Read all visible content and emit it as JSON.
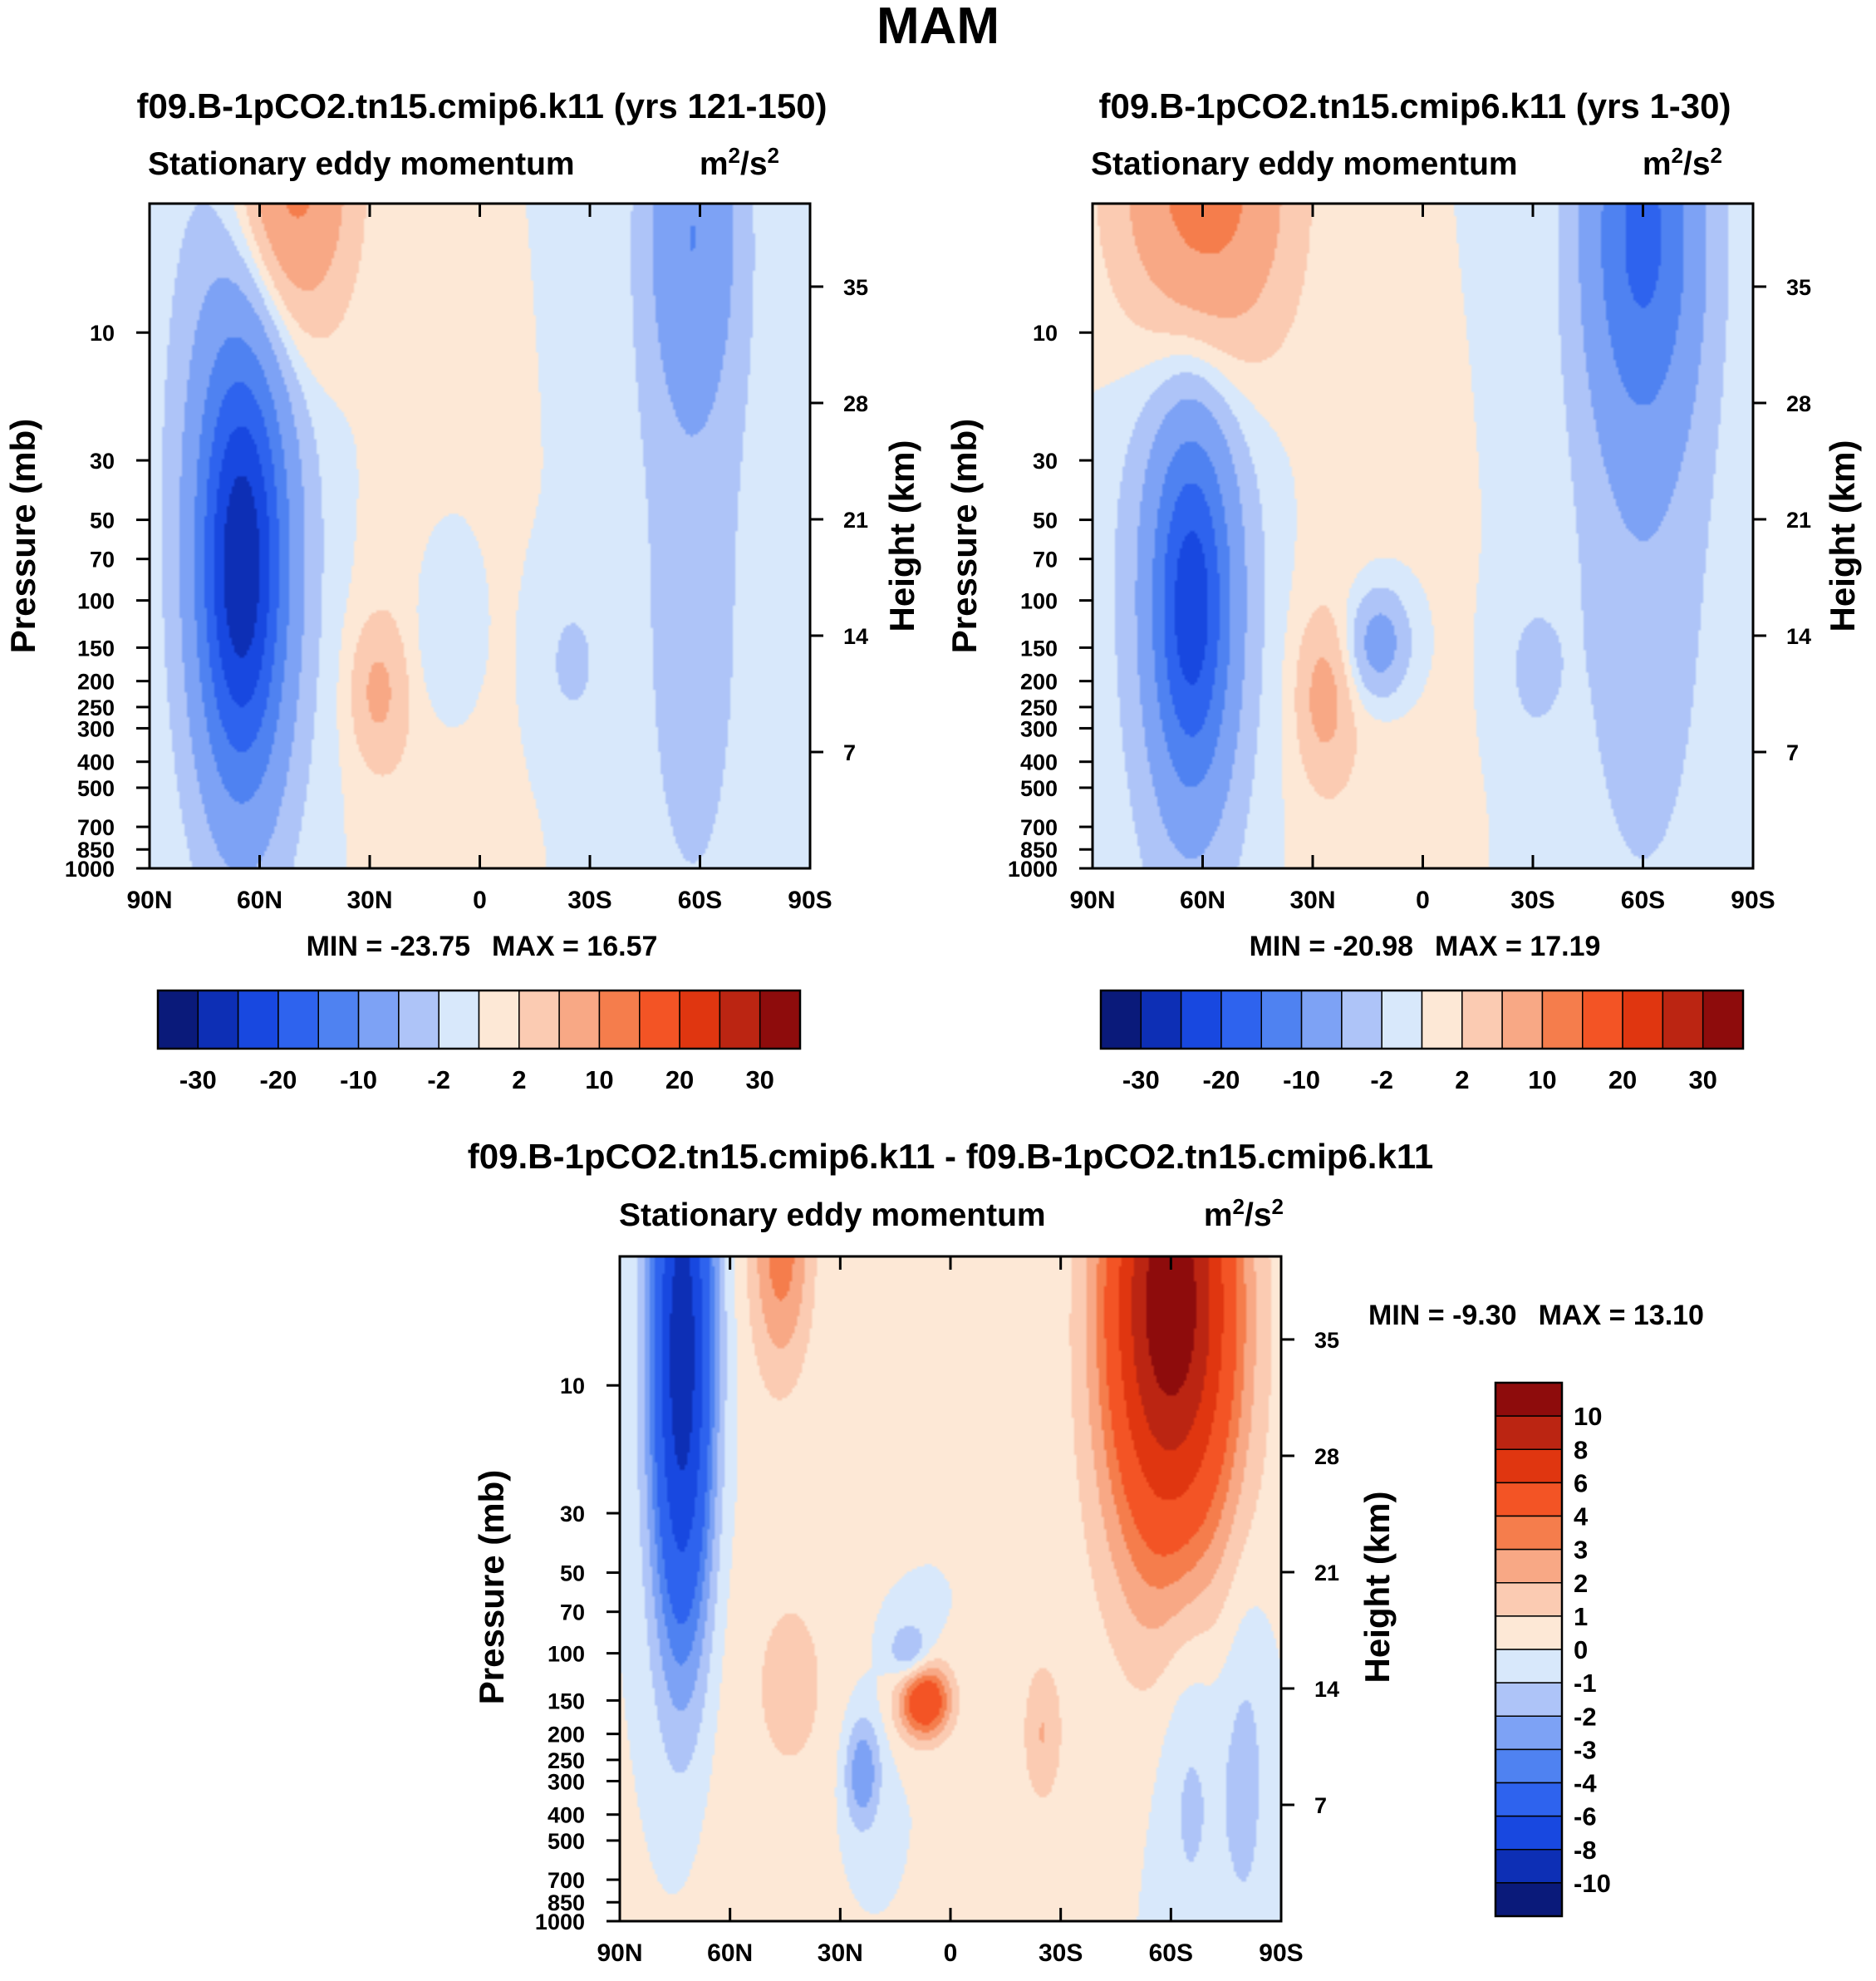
{
  "page_title": "MAM",
  "chart_data": [
    {
      "type": "contour",
      "title": "f09.B-1pCO2.tn15.cmip6.k11 (yrs 121-150)",
      "subtitle": "Stationary eddy momentum",
      "units": "m",
      "units_sup1": "2",
      "units_mid": "/s",
      "units_sup2": "2",
      "ylabel": "Pressure (mb)",
      "y2label": "Height (km)",
      "xticks": [
        "90N",
        "60N",
        "30N",
        "0",
        "30S",
        "60S",
        "90S"
      ],
      "yticks": [
        "10",
        "30",
        "50",
        "70",
        "100",
        "150",
        "200",
        "250",
        "300",
        "400",
        "500",
        "700",
        "850",
        "1000"
      ],
      "y2ticks": [
        "35",
        "28",
        "21",
        "14",
        "7"
      ],
      "min_label": "MIN = -23.75",
      "max_label": "MAX =  16.57",
      "min": -23.75,
      "max": 16.57,
      "levels": [
        -30,
        -25,
        -20,
        -15,
        -10,
        -5,
        -2,
        0,
        2,
        5,
        10,
        15,
        20,
        25,
        30
      ],
      "colorbar_labels": [
        "-30",
        "-20",
        "-10",
        "-2",
        "2",
        "10",
        "20",
        "30"
      ],
      "features": [
        {
          "lat": 65,
          "p": 80,
          "amp": -23,
          "slat": 8,
          "slogp": 0.55
        },
        {
          "lat": 64,
          "p": 30,
          "amp": -7,
          "slat": 13,
          "slogp": 1.0
        },
        {
          "lat": 52,
          "p": 2.5,
          "amp": 14,
          "slat": 11,
          "slogp": 0.45
        },
        {
          "lat": -58,
          "p": 4,
          "amp": -9,
          "slat": 9,
          "slogp": 0.5
        },
        {
          "lat": -58,
          "p": 120,
          "amp": -3,
          "slat": 12,
          "slogp": 1.0
        },
        {
          "lat": 28,
          "p": 220,
          "amp": 5,
          "slat": 5,
          "slogp": 0.18
        },
        {
          "lat": 10,
          "p": 130,
          "amp": -3,
          "slat": 6,
          "slogp": 0.25
        },
        {
          "lat": -25,
          "p": 170,
          "amp": -2.5,
          "slat": 6,
          "slogp": 0.2
        },
        {
          "lat": 18,
          "p": 200,
          "amp": 1.5,
          "slat": 12,
          "slogp": 0.6
        }
      ]
    },
    {
      "type": "contour",
      "title": "f09.B-1pCO2.tn15.cmip6.k11 (yrs 1-30)",
      "subtitle": "Stationary eddy momentum",
      "units": "m",
      "units_sup1": "2",
      "units_mid": "/s",
      "units_sup2": "2",
      "ylabel": "Pressure (mb)",
      "y2label": "Height (km)",
      "xticks": [
        "90N",
        "60N",
        "30N",
        "0",
        "30S",
        "60S",
        "90S"
      ],
      "yticks": [
        "10",
        "30",
        "50",
        "70",
        "100",
        "150",
        "200",
        "250",
        "300",
        "400",
        "500",
        "700",
        "850",
        "1000"
      ],
      "y2ticks": [
        "35",
        "28",
        "21",
        "14",
        "7"
      ],
      "min_label": "MIN = -20.98",
      "max_label": "MAX =  17.19",
      "min": -20.98,
      "max": 17.19,
      "levels": [
        -30,
        -25,
        -20,
        -15,
        -10,
        -5,
        -2,
        0,
        2,
        5,
        10,
        15,
        20,
        25,
        30
      ],
      "colorbar_labels": [
        "-30",
        "-20",
        "-10",
        "-2",
        "2",
        "10",
        "20",
        "30"
      ],
      "features": [
        {
          "lat": 63,
          "p": 110,
          "amp": -17,
          "slat": 7,
          "slogp": 0.45
        },
        {
          "lat": 63,
          "p": 60,
          "amp": -7,
          "slat": 13,
          "slogp": 0.9
        },
        {
          "lat": 60,
          "p": 3,
          "amp": 15,
          "slat": 15,
          "slogp": 0.5
        },
        {
          "lat": -60,
          "p": 4,
          "amp": -15,
          "slat": 11,
          "slogp": 0.55
        },
        {
          "lat": -60,
          "p": 80,
          "amp": -3.5,
          "slat": 14,
          "slogp": 1.0
        },
        {
          "lat": 27,
          "p": 230,
          "amp": 5.5,
          "slat": 5,
          "slogp": 0.2
        },
        {
          "lat": 12,
          "p": 145,
          "amp": -8,
          "slat": 6,
          "slogp": 0.15
        },
        {
          "lat": -30,
          "p": 180,
          "amp": -2.5,
          "slat": 6,
          "slogp": 0.2
        },
        {
          "lat": 20,
          "p": 250,
          "amp": 1.5,
          "slat": 14,
          "slogp": 0.6
        }
      ]
    },
    {
      "type": "contour",
      "title": "f09.B-1pCO2.tn15.cmip6.k11 - f09.B-1pCO2.tn15.cmip6.k11",
      "subtitle": "Stationary eddy momentum",
      "units": "m",
      "units_sup1": "2",
      "units_mid": "/s",
      "units_sup2": "2",
      "ylabel": "Pressure (mb)",
      "y2label": "Height (km)",
      "xticks": [
        "90N",
        "60N",
        "30N",
        "0",
        "30S",
        "60S",
        "90S"
      ],
      "yticks": [
        "10",
        "30",
        "50",
        "70",
        "100",
        "150",
        "200",
        "250",
        "300",
        "400",
        "500",
        "700",
        "850",
        "1000"
      ],
      "y2ticks": [
        "35",
        "28",
        "21",
        "14",
        "7"
      ],
      "min_label": "MIN =  -9.30",
      "max_label": "MAX =  13.10",
      "min": -9.3,
      "max": 13.1,
      "levels": [
        -10,
        -8,
        -6,
        -4,
        -3,
        -2,
        -1,
        0,
        1,
        2,
        3,
        4,
        6,
        8,
        10
      ],
      "colorbar_labels": [
        "10",
        "8",
        "6",
        "4",
        "3",
        "2",
        "1",
        "0",
        "-1",
        "-2",
        "-3",
        "-4",
        "-6",
        "-8",
        "-10"
      ],
      "features": [
        {
          "lat": 73,
          "p": 8,
          "amp": -9.5,
          "slat": 6,
          "slogp": 0.8
        },
        {
          "lat": 46,
          "p": 3,
          "amp": 3.5,
          "slat": 6,
          "slogp": 0.35
        },
        {
          "lat": 42,
          "p": 130,
          "amp": 1.2,
          "slat": 9,
          "slogp": 0.35
        },
        {
          "lat": -60,
          "p": 4,
          "amp": 10,
          "slat": 12,
          "slogp": 0.55
        },
        {
          "lat": -60,
          "p": 20,
          "amp": 3,
          "slat": 14,
          "slogp": 0.6
        },
        {
          "lat": 7,
          "p": 150,
          "amp": 6,
          "slat": 5,
          "slogp": 0.1
        },
        {
          "lat": 11,
          "p": 100,
          "amp": -2.5,
          "slat": 4,
          "slogp": 0.08
        },
        {
          "lat": 24,
          "p": 280,
          "amp": -3,
          "slat": 3.5,
          "slogp": 0.15
        },
        {
          "lat": -25,
          "p": 200,
          "amp": 2,
          "slat": 4,
          "slogp": 0.2
        },
        {
          "lat": -65,
          "p": 250,
          "amp": -1.5,
          "slat": 6,
          "slogp": 0.5
        },
        {
          "lat": -80,
          "p": 250,
          "amp": -1.5,
          "slat": 5,
          "slogp": 0.5
        },
        {
          "lat": 65,
          "p": 300,
          "amp": 0.6,
          "slat": 12,
          "slogp": 1.2
        }
      ]
    }
  ]
}
